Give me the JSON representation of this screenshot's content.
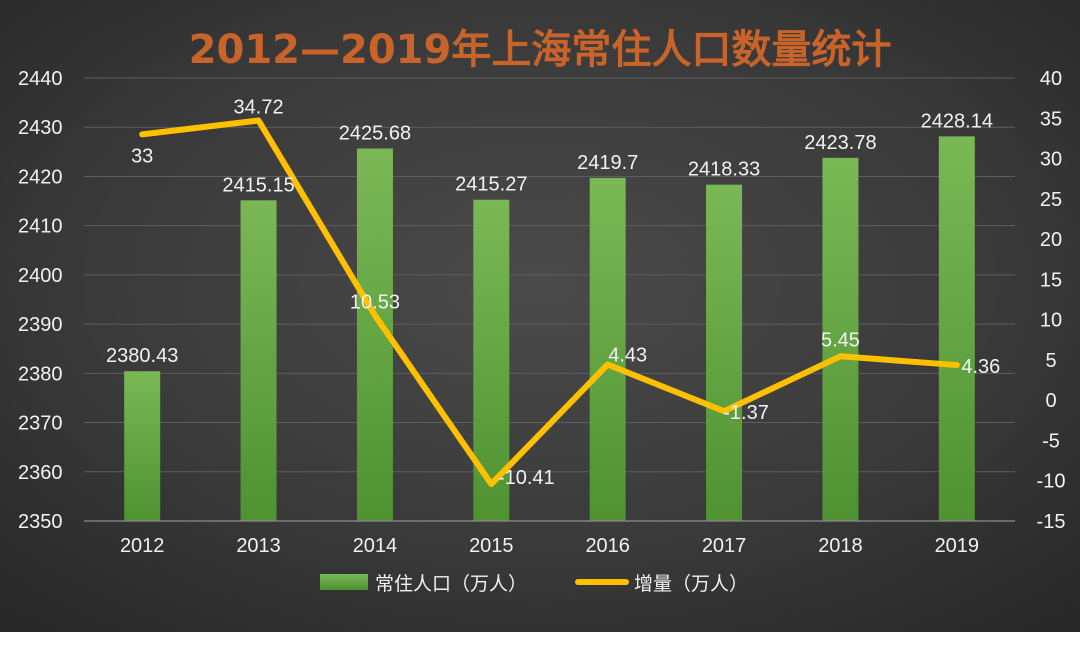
{
  "chart_data": {
    "type": "bar",
    "title": "2012—2019年上海常住人口数量统计",
    "categories": [
      "2012",
      "2013",
      "2014",
      "2015",
      "2016",
      "2017",
      "2018",
      "2019"
    ],
    "series": [
      {
        "name": "常住人口（万人）",
        "type": "bar",
        "axis": "left",
        "color": "#6fb04a",
        "values": [
          2380.43,
          2415.15,
          2425.68,
          2415.27,
          2419.7,
          2418.33,
          2423.78,
          2428.14
        ],
        "labels": [
          "2380.43",
          "2415.15",
          "2425.68",
          "2415.27",
          "2419.7",
          "2418.33",
          "2423.78",
          "2428.14"
        ]
      },
      {
        "name": "增量（万人）",
        "type": "line",
        "axis": "right",
        "color": "#ffc000",
        "values": [
          33,
          34.72,
          10.53,
          -10.41,
          4.43,
          -1.37,
          5.45,
          4.36
        ],
        "labels": [
          "33",
          "34.72",
          "10.53",
          "-10.41",
          "4.43",
          "-1.37",
          "5.45",
          "4.36"
        ]
      }
    ],
    "y_left": {
      "ylim": [
        2350,
        2440
      ],
      "ticks": [
        "2350",
        "2360",
        "2370",
        "2380",
        "2390",
        "2400",
        "2410",
        "2420",
        "2430",
        "2440"
      ]
    },
    "y_right": {
      "ylim": [
        -15,
        40
      ],
      "ticks": [
        "-15",
        "-10",
        "-5",
        "0",
        "5",
        "10",
        "15",
        "20",
        "25",
        "30",
        "35",
        "40"
      ]
    },
    "grid": true,
    "legend_position": "bottom",
    "colors": {
      "title": "#c8632a",
      "text": "#f2f2f2",
      "grid": "#5e5e5e"
    }
  }
}
